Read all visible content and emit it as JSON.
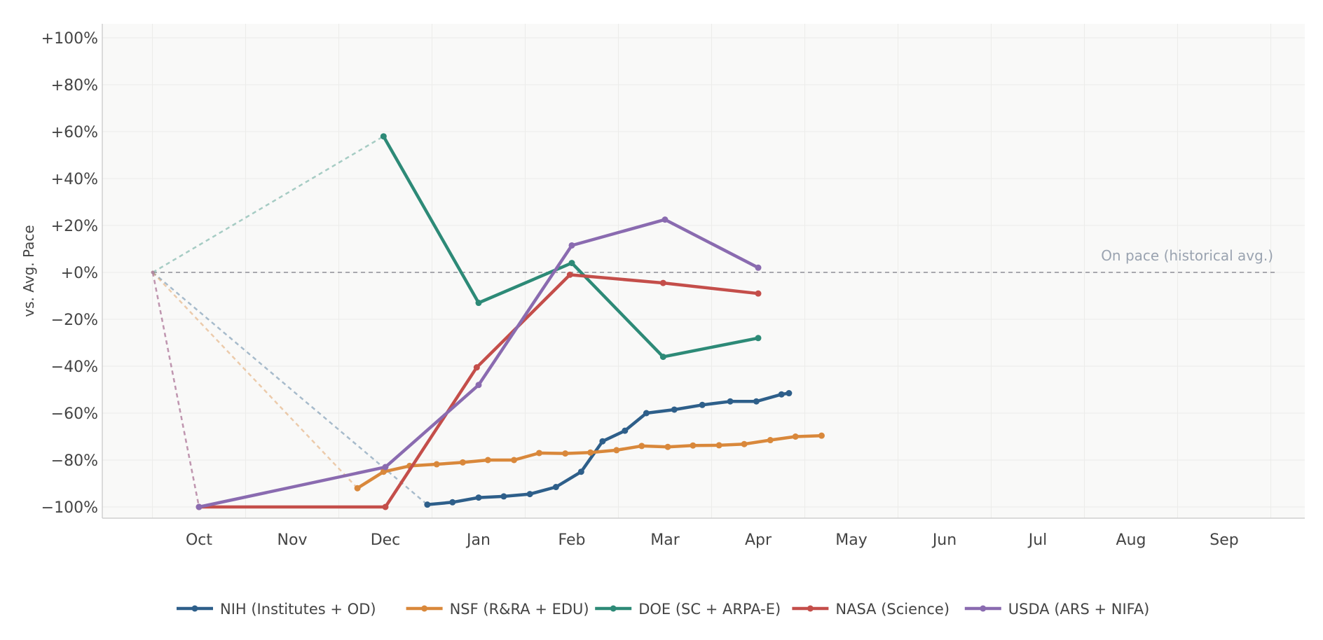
{
  "chart_data": {
    "type": "line",
    "ylabel": "vs. Avg. Pace",
    "x_ticks": [
      "Oct",
      "Nov",
      "Dec",
      "Jan",
      "Feb",
      "Mar",
      "Apr",
      "May",
      "Jun",
      "Jul",
      "Aug",
      "Sep"
    ],
    "y_ticks": [
      "+100%",
      "+80%",
      "+60%",
      "+40%",
      "+20%",
      "+0%",
      "−20%",
      "−40%",
      "−60%",
      "−80%",
      "−100%"
    ],
    "ylim": [
      -100,
      100
    ],
    "grid": true,
    "reference_line": {
      "value": 0,
      "label": "On pace (historical avg.)"
    },
    "legend_position": "bottom-center",
    "series": [
      {
        "name": "NIH (Institutes + OD)",
        "color": "#2e5f8a",
        "points": [
          [
            2.45,
            -99
          ],
          [
            2.72,
            -98
          ],
          [
            3.0,
            -96
          ],
          [
            3.27,
            -95.5
          ],
          [
            3.55,
            -94.5
          ],
          [
            3.83,
            -91.5
          ],
          [
            4.1,
            -85
          ],
          [
            4.33,
            -72
          ],
          [
            4.57,
            -67.5
          ],
          [
            4.8,
            -60
          ],
          [
            5.1,
            -58.5
          ],
          [
            5.4,
            -56.5
          ],
          [
            5.7,
            -55
          ],
          [
            5.98,
            -55
          ],
          [
            6.25,
            -52
          ],
          [
            6.33,
            -51.5
          ]
        ]
      },
      {
        "name": "NSF (R&RA + EDU)",
        "color": "#d9883b",
        "points": [
          [
            1.7,
            -92
          ],
          [
            1.98,
            -85
          ],
          [
            2.26,
            -82.5
          ],
          [
            2.55,
            -81.8
          ],
          [
            2.83,
            -81
          ],
          [
            3.1,
            -80
          ],
          [
            3.38,
            -80
          ],
          [
            3.65,
            -77
          ],
          [
            3.93,
            -77.2
          ],
          [
            4.2,
            -76.8
          ],
          [
            4.48,
            -75.8
          ],
          [
            4.75,
            -74
          ],
          [
            5.03,
            -74.4
          ],
          [
            5.3,
            -73.8
          ],
          [
            5.58,
            -73.7
          ],
          [
            5.85,
            -73.2
          ],
          [
            6.13,
            -71.5
          ],
          [
            6.4,
            -70
          ],
          [
            6.68,
            -69.6
          ]
        ]
      },
      {
        "name": "DOE (SC + ARPA-E)",
        "color": "#2d8a77",
        "points": [
          [
            1.98,
            58
          ],
          [
            3.0,
            -13
          ],
          [
            4.0,
            4
          ],
          [
            4.98,
            -36
          ],
          [
            6.0,
            -28
          ]
        ]
      },
      {
        "name": "NASA (Science)",
        "color": "#c44e4a",
        "points": [
          [
            0.0,
            -100
          ],
          [
            2.0,
            -100
          ],
          [
            2.98,
            -40.5
          ],
          [
            3.98,
            -1
          ],
          [
            4.98,
            -4.5
          ],
          [
            6.0,
            -9
          ]
        ]
      },
      {
        "name": "USDA (ARS + NIFA)",
        "color": "#8a6bb0",
        "points": [
          [
            0.0,
            -100
          ],
          [
            2.0,
            -83
          ],
          [
            3.0,
            -48
          ],
          [
            4.0,
            11.5
          ],
          [
            5.0,
            22.5
          ],
          [
            6.0,
            2
          ]
        ]
      }
    ]
  }
}
